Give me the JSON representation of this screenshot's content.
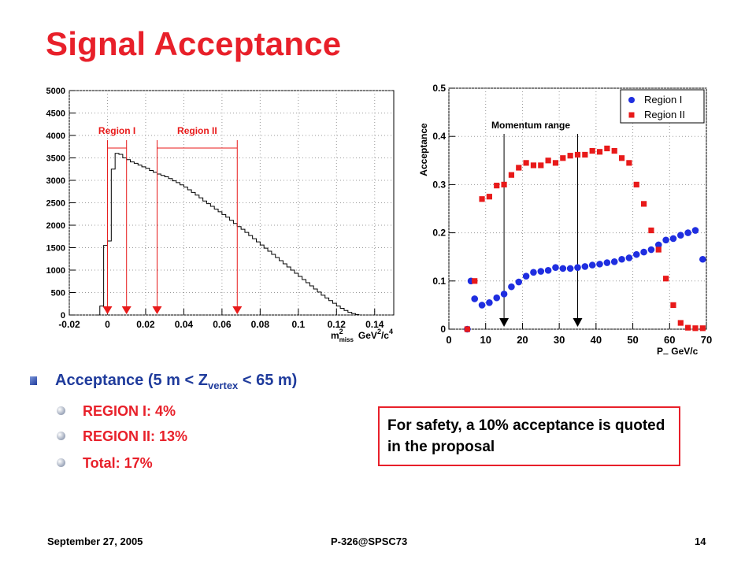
{
  "slide": {
    "title": "Signal Acceptance",
    "bullet_main": {
      "pre": "Acceptance (5 m < Z",
      "sub": "vertex",
      "post": " < 65 m)"
    },
    "bullets_sub": [
      "REGION I:   4%",
      "REGION II:  13%",
      "Total: 17%"
    ],
    "note": "For safety, a 10% acceptance is quoted in the proposal",
    "footer": {
      "date": "September 27, 2005",
      "ref": "P-326@SPSC73",
      "page": "14"
    },
    "colors": {
      "title": "#e8202a",
      "bullet": "#1f3b9c",
      "region_I": "#1f2ee0",
      "region_II": "#e81a1a"
    }
  },
  "chart_data": [
    {
      "type": "histogram",
      "xlabel": "m",
      "xlabel_sup": "2",
      "xlabel_sub": "miss",
      "xlabel_unit": "GeV",
      "xlabel_unit_sup": "2",
      "xlabel_unit_mid": "/c",
      "xlabel_unit_sup2": "4",
      "xlim": [
        -0.02,
        0.15
      ],
      "ylim": [
        0,
        5000
      ],
      "xticks": [
        -0.02,
        0,
        0.02,
        0.04,
        0.06,
        0.08,
        0.1,
        0.12,
        0.14
      ],
      "xtick_labels": [
        "-0.02",
        "0",
        "0.02",
        "0.04",
        "0.06",
        "0.08",
        "0.1",
        "0.12",
        "0.14"
      ],
      "yticks": [
        0,
        500,
        1000,
        1500,
        2000,
        2500,
        3000,
        3500,
        4000,
        4500,
        5000
      ],
      "ytick_labels": [
        "0",
        "500",
        "1000",
        "1500",
        "2000",
        "2500",
        "3000",
        "3500",
        "4000",
        "4500",
        "5000"
      ],
      "grid": true,
      "bin_width": 0.002,
      "bin_start": -0.006,
      "values": [
        0,
        200,
        1550,
        1650,
        3250,
        3600,
        3580,
        3500,
        3460,
        3410,
        3380,
        3340,
        3300,
        3270,
        3220,
        3180,
        3140,
        3110,
        3080,
        3040,
        2990,
        2950,
        2900,
        2850,
        2790,
        2730,
        2670,
        2610,
        2540,
        2480,
        2420,
        2360,
        2300,
        2240,
        2180,
        2110,
        2040,
        1970,
        1910,
        1840,
        1770,
        1700,
        1630,
        1560,
        1490,
        1420,
        1350,
        1280,
        1210,
        1140,
        1070,
        1000,
        930,
        860,
        790,
        720,
        650,
        580,
        510,
        440,
        380,
        320,
        260,
        200,
        150,
        100,
        60,
        30,
        10
      ],
      "regions": [
        {
          "name": "Region I",
          "range": [
            0,
            0.01
          ]
        },
        {
          "name": "Region II",
          "range": [
            0.026,
            0.068
          ]
        }
      ],
      "region_color": "#e81a1a"
    },
    {
      "type": "scatter",
      "xlabel": "P",
      "xlabel_sub": "π",
      "xlabel_unit": " GeV/c",
      "ylabel": "Acceptance",
      "xlim": [
        0,
        70
      ],
      "ylim": [
        0,
        0.5
      ],
      "xticks": [
        0,
        10,
        20,
        30,
        40,
        50,
        60,
        70
      ],
      "xtick_labels": [
        "0",
        "10",
        "20",
        "30",
        "40",
        "50",
        "60",
        "70"
      ],
      "yticks": [
        0,
        0.1,
        0.2,
        0.3,
        0.4,
        0.5
      ],
      "ytick_labels": [
        "0",
        "0.1",
        "0.2",
        "0.3",
        "0.4",
        "0.5"
      ],
      "grid": true,
      "legend": "top-right",
      "annotation": "Momentum range",
      "arrows_x": [
        15,
        35
      ],
      "series": [
        {
          "name": "Region I",
          "marker": "circle",
          "color": "#1f2ee0",
          "x": [
            5,
            6,
            7,
            9,
            11,
            13,
            15,
            17,
            19,
            21,
            23,
            25,
            27,
            29,
            31,
            33,
            35,
            37,
            39,
            41,
            43,
            45,
            47,
            49,
            51,
            53,
            55,
            57,
            59,
            61,
            63,
            65,
            67,
            69
          ],
          "y": [
            0.0,
            0.1,
            0.063,
            0.05,
            0.055,
            0.065,
            0.073,
            0.088,
            0.098,
            0.11,
            0.118,
            0.12,
            0.122,
            0.128,
            0.126,
            0.126,
            0.128,
            0.13,
            0.133,
            0.135,
            0.138,
            0.14,
            0.145,
            0.148,
            0.155,
            0.16,
            0.165,
            0.175,
            0.185,
            0.188,
            0.195,
            0.2,
            0.205,
            0.145
          ]
        },
        {
          "name": "Region II",
          "marker": "square",
          "color": "#e81a1a",
          "x": [
            5,
            7,
            9,
            11,
            13,
            15,
            17,
            19,
            21,
            23,
            25,
            27,
            29,
            31,
            33,
            35,
            37,
            39,
            41,
            43,
            45,
            47,
            49,
            51,
            53,
            55,
            57,
            59,
            61,
            63,
            65,
            67,
            69
          ],
          "y": [
            0.0,
            0.1,
            0.27,
            0.275,
            0.298,
            0.3,
            0.32,
            0.335,
            0.345,
            0.34,
            0.34,
            0.35,
            0.345,
            0.355,
            0.36,
            0.362,
            0.362,
            0.37,
            0.368,
            0.375,
            0.37,
            0.355,
            0.345,
            0.3,
            0.26,
            0.205,
            0.165,
            0.105,
            0.05,
            0.013,
            0.003,
            0.002,
            0.002
          ]
        }
      ]
    }
  ]
}
